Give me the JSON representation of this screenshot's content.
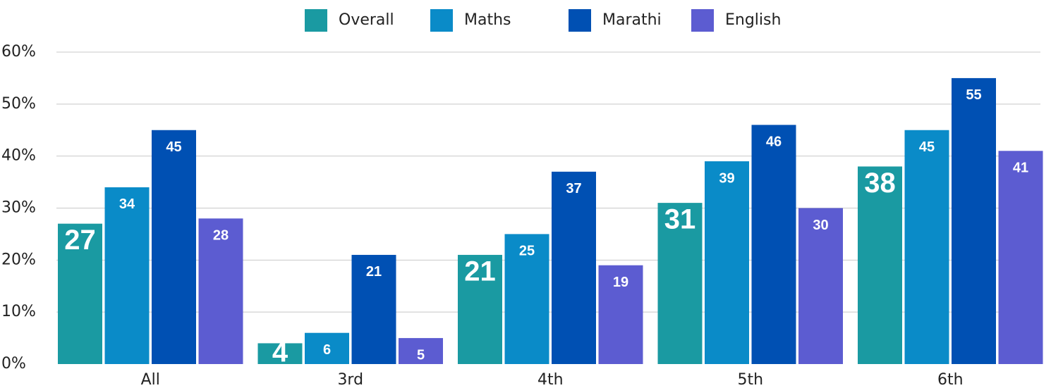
{
  "chart_data": {
    "type": "bar",
    "categories": [
      "All",
      "3rd",
      "4th",
      "5th",
      "6th"
    ],
    "series": [
      {
        "name": "Overall",
        "color": "#1a9aa2",
        "values": [
          27,
          4,
          21,
          31,
          38
        ]
      },
      {
        "name": "Maths",
        "color": "#0a8bc8",
        "values": [
          34,
          6,
          25,
          39,
          45
        ]
      },
      {
        "name": "Marathi",
        "color": "#0050b3",
        "values": [
          45,
          21,
          37,
          46,
          55
        ]
      },
      {
        "name": "English",
        "color": "#5c5cd1",
        "values": [
          28,
          5,
          19,
          30,
          41
        ]
      }
    ],
    "ylim": [
      0,
      60
    ],
    "yticks": [
      {
        "value": 0,
        "label": "0%"
      },
      {
        "value": 10,
        "label": "10%"
      },
      {
        "value": 20,
        "label": "20%"
      },
      {
        "value": 30,
        "label": "30%"
      },
      {
        "value": 40,
        "label": "40%"
      },
      {
        "value": 50,
        "label": "50%"
      },
      {
        "value": 60,
        "label": "60%"
      }
    ],
    "grid": true,
    "legend": "top"
  }
}
